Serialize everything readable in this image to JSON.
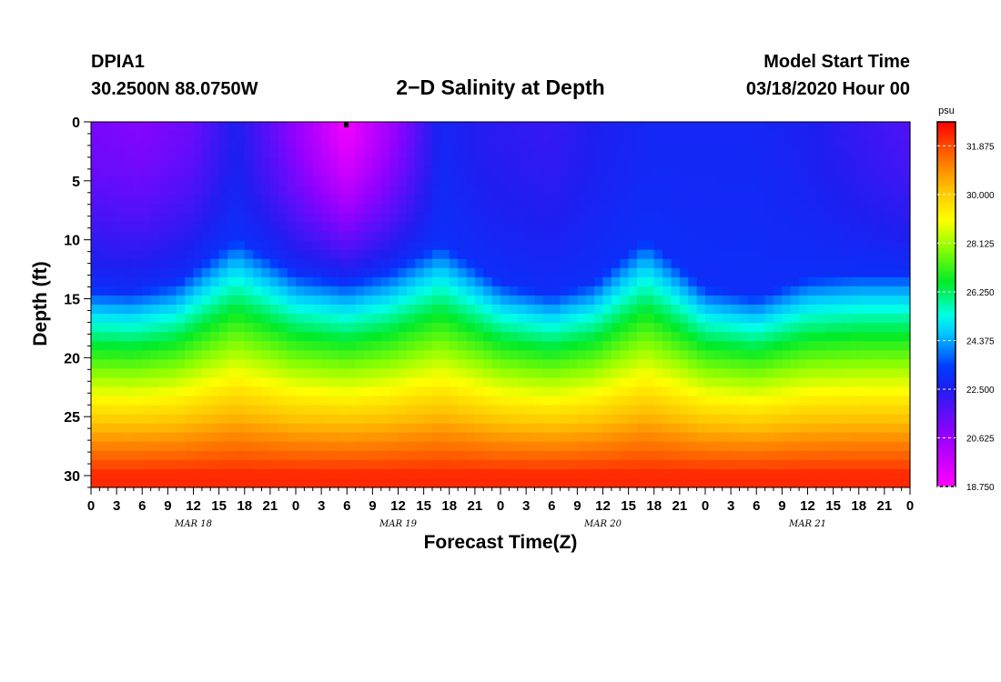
{
  "header": {
    "station": "DPIA1",
    "coords": "30.2500N 88.0750W",
    "title": "2−D Salinity at Depth",
    "model_label": "Model Start Time",
    "model_time": "03/18/2020 Hour 00"
  },
  "chart_data": {
    "type": "heatmap",
    "title": "2−D Salinity at Depth",
    "xlabel": "Forecast Time(Z)",
    "ylabel": "Depth (ft)",
    "x_range_hours": [
      0,
      96
    ],
    "y_range_ft": [
      0,
      31
    ],
    "y_ticks": [
      0,
      5,
      10,
      15,
      20,
      25,
      30
    ],
    "x_tick_labels": [
      "0",
      "3",
      "6",
      "9",
      "12",
      "15",
      "18",
      "21",
      "0",
      "3",
      "6",
      "9",
      "12",
      "15",
      "18",
      "21",
      "0",
      "3",
      "6",
      "9",
      "12",
      "15",
      "18",
      "21",
      "0",
      "3",
      "6",
      "9",
      "12",
      "15",
      "18",
      "21",
      "0"
    ],
    "day_labels": [
      "MAR 18",
      "MAR 19",
      "MAR 20",
      "MAR 21"
    ],
    "colorbar": {
      "unit": "psu",
      "ticks": [
        "31.875",
        "30.000",
        "28.125",
        "26.250",
        "24.375",
        "22.500",
        "20.625",
        "18.750"
      ],
      "range": [
        18.75,
        32.8
      ]
    },
    "surface_salinity_profile": {
      "hours": [
        0,
        6,
        12,
        17,
        22,
        30,
        36,
        41,
        46,
        54,
        60,
        66,
        70,
        78,
        84,
        90,
        96
      ],
      "psu": [
        21.2,
        21.0,
        21.4,
        22.6,
        21.3,
        19.0,
        20.8,
        22.8,
        22.4,
        22.2,
        22.6,
        22.8,
        22.8,
        22.8,
        22.6,
        22.2,
        21.8
      ]
    },
    "halocline_depth_profile": {
      "hours": [
        0,
        5,
        10,
        17,
        24,
        30,
        35,
        41,
        48,
        54,
        59,
        65,
        72,
        78,
        84,
        90,
        96
      ],
      "depth_ft": [
        14.2,
        14.4,
        13.6,
        9.8,
        12.8,
        13.6,
        12.6,
        10.2,
        13.6,
        14.6,
        13.5,
        9.8,
        14.0,
        14.8,
        13.2,
        12.8,
        12.8
      ]
    },
    "bottom_salinity_psu": 32.3
  }
}
